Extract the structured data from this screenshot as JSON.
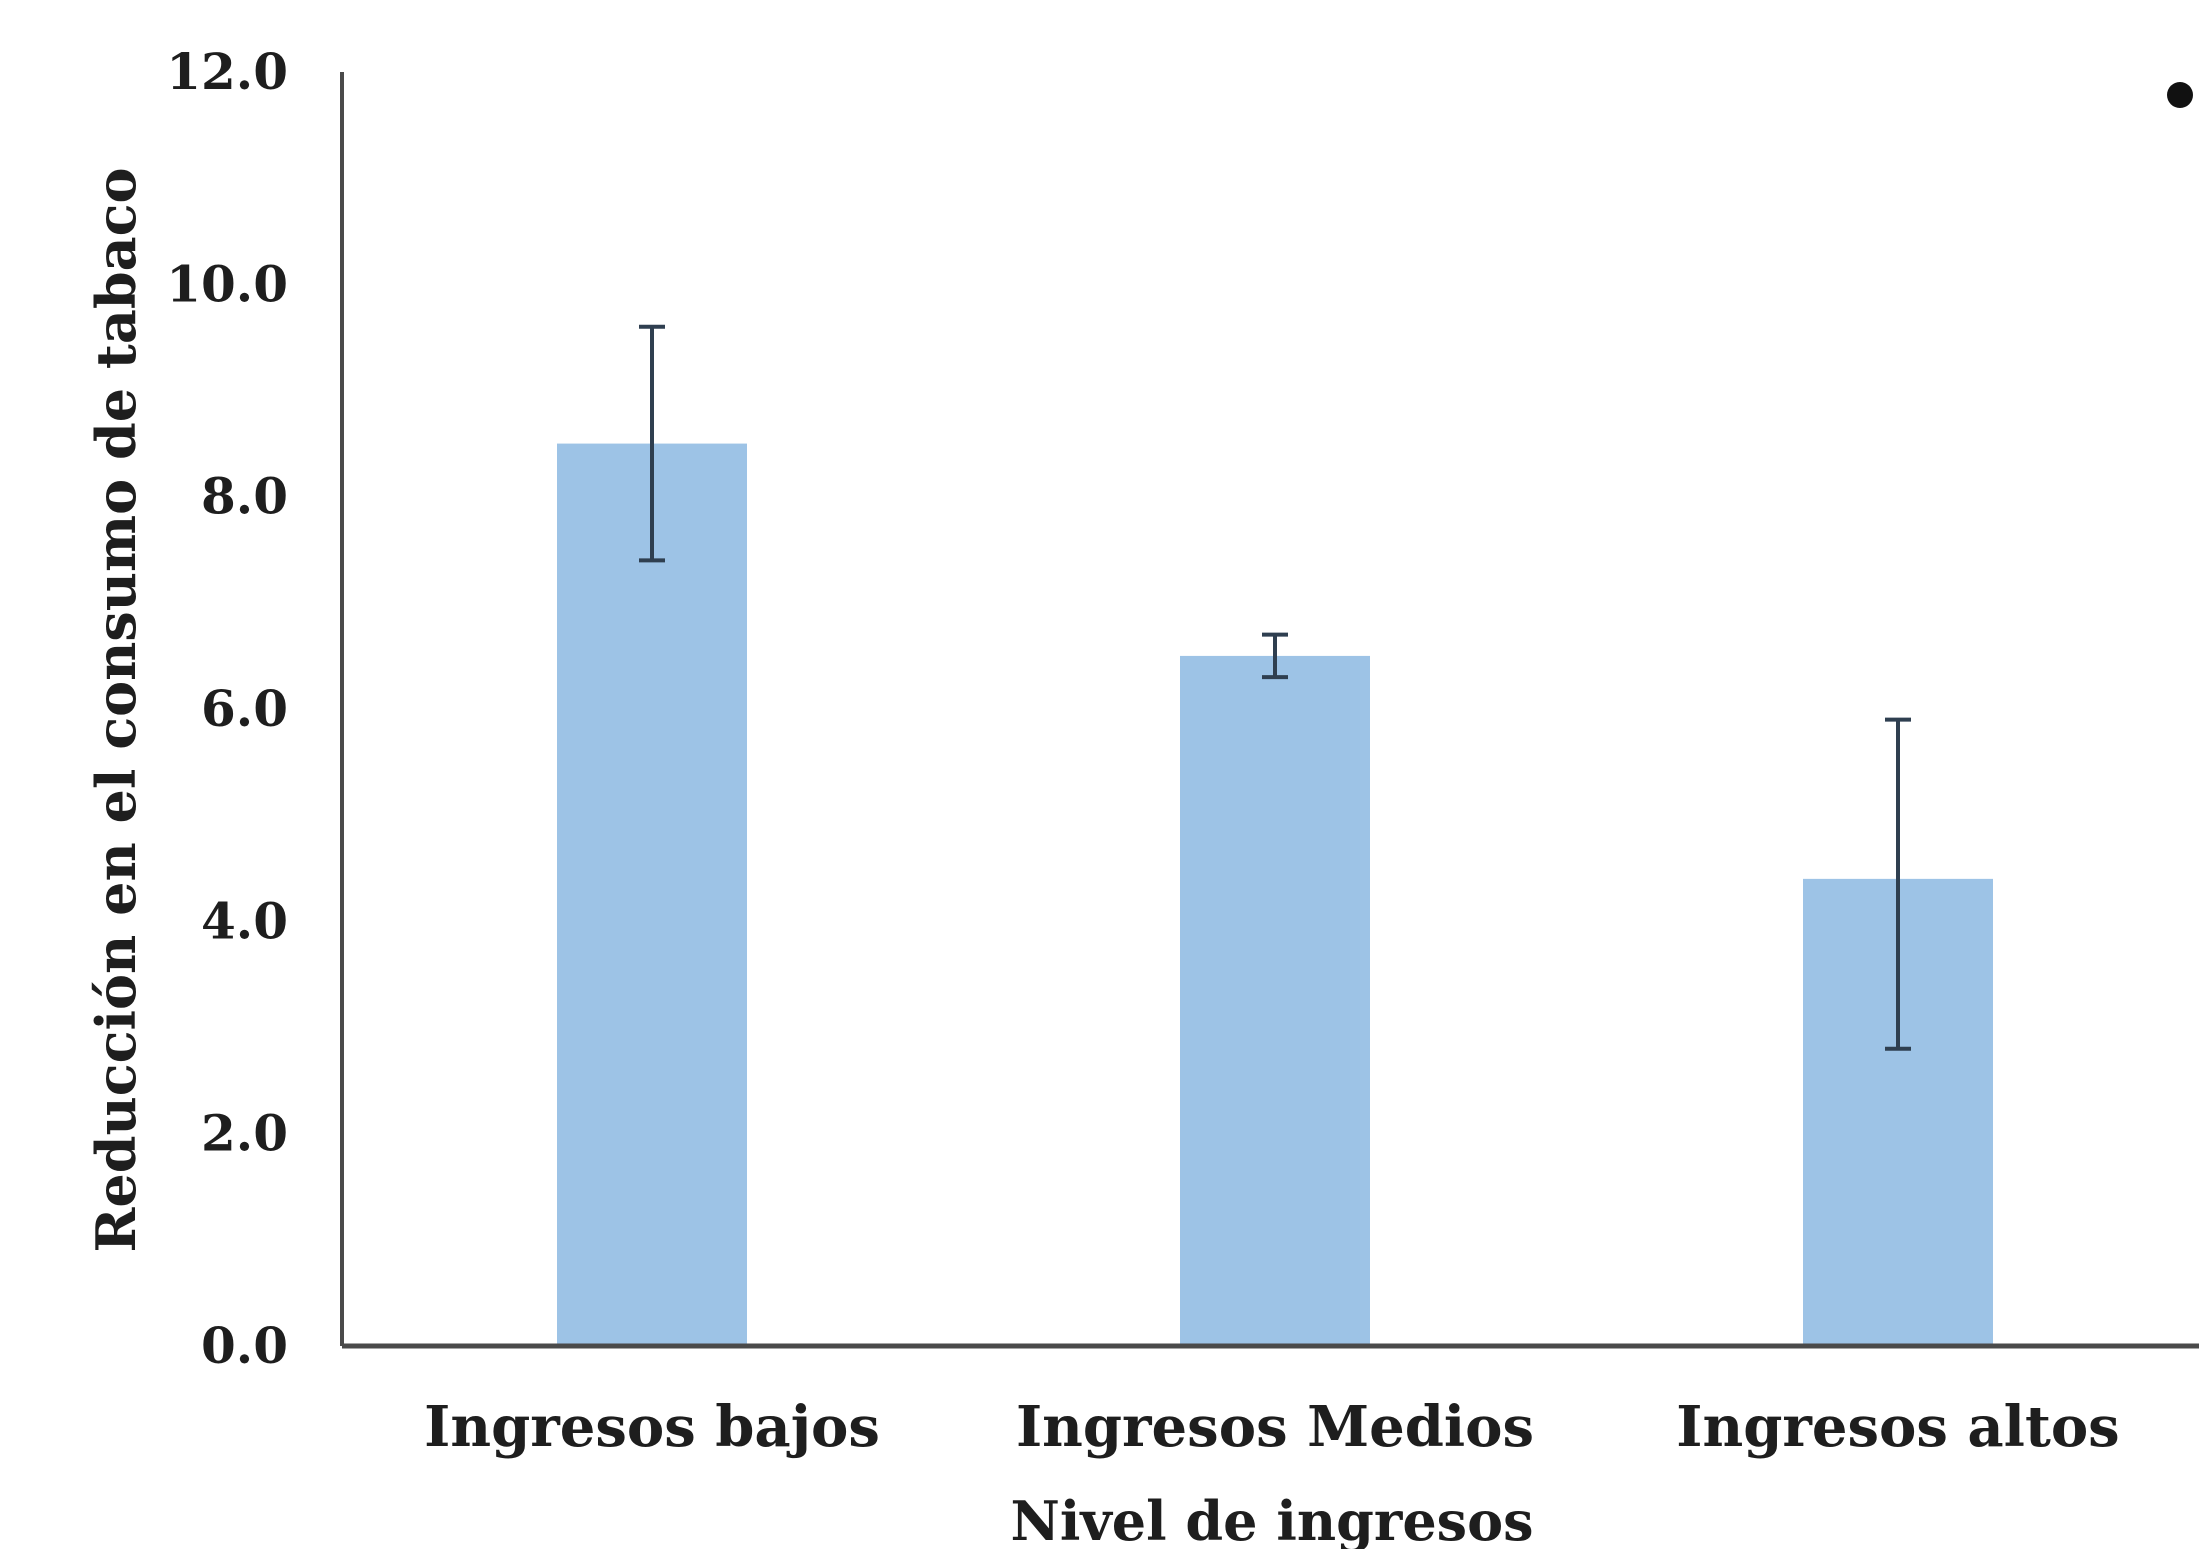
{
  "chart_data": {
    "type": "bar",
    "title": "",
    "xlabel": "Nivel de ingresos",
    "ylabel": "Reducción en el consumo de tabaco",
    "categories": [
      "Ingresos bajos",
      "Ingresos Medios",
      "Ingresos altos"
    ],
    "values": [
      8.5,
      6.5,
      4.4
    ],
    "error_low": [
      7.4,
      6.3,
      2.8
    ],
    "error_high": [
      9.6,
      6.7,
      5.9
    ],
    "ylim": [
      0,
      12
    ],
    "yticks": [
      "0.0",
      "2.0",
      "4.0",
      "6.0",
      "8.0",
      "10.0",
      "12.0"
    ],
    "grid": false,
    "legend": "none",
    "bar_color": "#9dc3e6",
    "error_bar_color": "#2f3f50",
    "axis_color": "#4a4a4a"
  }
}
